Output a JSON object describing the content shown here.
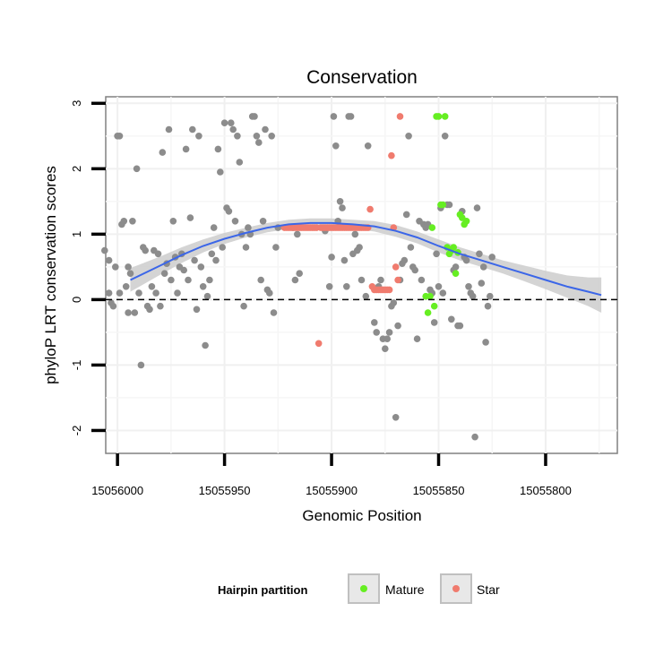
{
  "chart_data": {
    "type": "scatter",
    "title": "Conservation",
    "xlabel": "Genomic Position",
    "ylabel": "phyloP LRT conservation scores",
    "x_reversed": true,
    "xlim": [
      15056005.5,
      15055766.5
    ],
    "ylim": [
      -2.35,
      3.1
    ],
    "x_ticks": [
      15056000,
      15055950,
      15055900,
      15055850,
      15055800
    ],
    "x_tick_labels": [
      "15056000",
      "15055950",
      "15055900",
      "15055850",
      "15055800"
    ],
    "y_ticks": [
      -2,
      -1,
      0,
      1,
      2,
      3
    ],
    "y_tick_labels": [
      "-2",
      "-1",
      "0",
      "1",
      "2",
      "3"
    ],
    "grid": true,
    "reference_line": {
      "y": 0,
      "style": "dashed"
    },
    "legend": {
      "title": "Hairpin partition",
      "placement": "bottom",
      "entries": [
        {
          "label": "Mature",
          "color": "#66ee22"
        },
        {
          "label": "Star",
          "color": "#f07b6e"
        }
      ]
    },
    "colors": {
      "other": "#8c8c8c",
      "mature": "#66ee22",
      "star": "#f07b6e",
      "smooth": "#3b66e8",
      "band": "#cccccc"
    },
    "series": [
      {
        "name": "",
        "color": "#8c8c8c",
        "points": [
          [
            15056006,
            0.75
          ],
          [
            15056004,
            0.6
          ],
          [
            15056004,
            0.1
          ],
          [
            15056003,
            -0.05
          ],
          [
            15056002,
            -0.1
          ],
          [
            15056001,
            0.5
          ],
          [
            15056000,
            2.5
          ],
          [
            15055999,
            2.5
          ],
          [
            15055999,
            0.1
          ],
          [
            15055998,
            1.15
          ],
          [
            15055997,
            1.2
          ],
          [
            15055996,
            0.2
          ],
          [
            15055995,
            0.5
          ],
          [
            15055995,
            -0.2
          ],
          [
            15055994,
            0.4
          ],
          [
            15055993,
            1.2
          ],
          [
            15055992,
            -0.2
          ],
          [
            15055991,
            2.0
          ],
          [
            15055990,
            0.1
          ],
          [
            15055989,
            -1.0
          ],
          [
            15055988,
            0.8
          ],
          [
            15055987,
            0.75
          ],
          [
            15055986,
            -0.1
          ],
          [
            15055985,
            -0.15
          ],
          [
            15055984,
            0.2
          ],
          [
            15055983,
            0.75
          ],
          [
            15055982,
            0.1
          ],
          [
            15055981,
            0.7
          ],
          [
            15055980,
            -0.1
          ],
          [
            15055979,
            2.25
          ],
          [
            15055978,
            0.4
          ],
          [
            15055977,
            0.55
          ],
          [
            15055976,
            2.6
          ],
          [
            15055975,
            0.3
          ],
          [
            15055974,
            1.2
          ],
          [
            15055973,
            0.65
          ],
          [
            15055972,
            0.1
          ],
          [
            15055971,
            0.5
          ],
          [
            15055970,
            0.7
          ],
          [
            15055969,
            0.45
          ],
          [
            15055968,
            2.3
          ],
          [
            15055967,
            0.3
          ],
          [
            15055966,
            1.25
          ],
          [
            15055965,
            2.6
          ],
          [
            15055964,
            0.6
          ],
          [
            15055963,
            -0.15
          ],
          [
            15055962,
            2.5
          ],
          [
            15055961,
            0.5
          ],
          [
            15055960,
            0.2
          ],
          [
            15055959,
            -0.7
          ],
          [
            15055958,
            0.05
          ],
          [
            15055957,
            0.3
          ],
          [
            15055956,
            0.7
          ],
          [
            15055955,
            1.1
          ],
          [
            15055954,
            0.6
          ],
          [
            15055953,
            2.3
          ],
          [
            15055952,
            1.95
          ],
          [
            15055951,
            0.8
          ],
          [
            15055950,
            2.7
          ],
          [
            15055949,
            1.4
          ],
          [
            15055948,
            1.35
          ],
          [
            15055947,
            2.7
          ],
          [
            15055946,
            2.6
          ],
          [
            15055945,
            1.2
          ],
          [
            15055944,
            2.5
          ],
          [
            15055943,
            2.1
          ],
          [
            15055942,
            1.0
          ],
          [
            15055941,
            -0.1
          ],
          [
            15055940,
            0.8
          ],
          [
            15055939,
            1.1
          ],
          [
            15055938,
            1.0
          ],
          [
            15055937,
            2.8
          ],
          [
            15055936,
            2.8
          ],
          [
            15055935,
            2.5
          ],
          [
            15055934,
            2.4
          ],
          [
            15055933,
            0.3
          ],
          [
            15055932,
            1.2
          ],
          [
            15055931,
            2.6
          ],
          [
            15055930,
            0.15
          ],
          [
            15055929,
            0.1
          ],
          [
            15055928,
            2.5
          ],
          [
            15055927,
            -0.2
          ],
          [
            15055926,
            0.8
          ],
          [
            15055925,
            1.1
          ],
          [
            15055918,
            1.1
          ],
          [
            15055917,
            0.3
          ],
          [
            15055916,
            1.0
          ],
          [
            15055915,
            0.4
          ],
          [
            15055903,
            1.05
          ],
          [
            15055901,
            0.2
          ],
          [
            15055900,
            0.65
          ],
          [
            15055899,
            2.8
          ],
          [
            15055898,
            2.35
          ],
          [
            15055897,
            1.2
          ],
          [
            15055896,
            1.5
          ],
          [
            15055895,
            1.4
          ],
          [
            15055894,
            0.6
          ],
          [
            15055893,
            0.2
          ],
          [
            15055892,
            2.8
          ],
          [
            15055891,
            2.8
          ],
          [
            15055890,
            0.7
          ],
          [
            15055889,
            1.0
          ],
          [
            15055888,
            0.75
          ],
          [
            15055887,
            0.8
          ],
          [
            15055886,
            0.3
          ],
          [
            15055884,
            0.05
          ],
          [
            15055883,
            2.35
          ],
          [
            15055880,
            -0.35
          ],
          [
            15055879,
            -0.5
          ],
          [
            15055878,
            0.2
          ],
          [
            15055877,
            0.3
          ],
          [
            15055876,
            -0.6
          ],
          [
            15055875,
            -0.75
          ],
          [
            15055874,
            -0.6
          ],
          [
            15055873,
            -0.5
          ],
          [
            15055872,
            -0.1
          ],
          [
            15055871,
            -0.05
          ],
          [
            15055870,
            -1.8
          ],
          [
            15055869,
            -0.4
          ],
          [
            15055868,
            0.3
          ],
          [
            15055867,
            0.55
          ],
          [
            15055866,
            0.6
          ],
          [
            15055865,
            1.3
          ],
          [
            15055864,
            2.5
          ],
          [
            15055863,
            0.8
          ],
          [
            15055862,
            0.5
          ],
          [
            15055861,
            0.45
          ],
          [
            15055860,
            -0.6
          ],
          [
            15055859,
            1.2
          ],
          [
            15055858,
            0.3
          ],
          [
            15055857,
            1.15
          ],
          [
            15055856,
            1.1
          ],
          [
            15055855,
            1.15
          ],
          [
            15055854,
            0.15
          ],
          [
            15055853,
            0.1
          ],
          [
            15055852,
            -0.35
          ],
          [
            15055851,
            0.7
          ],
          [
            15055850,
            0.2
          ],
          [
            15055849,
            1.4
          ],
          [
            15055848,
            0.1
          ],
          [
            15055847,
            2.5
          ],
          [
            15055846,
            1.45
          ],
          [
            15055845,
            1.45
          ],
          [
            15055844,
            -0.3
          ],
          [
            15055843,
            0.45
          ],
          [
            15055842,
            0.5
          ],
          [
            15055841,
            -0.4
          ],
          [
            15055840,
            -0.4
          ],
          [
            15055839,
            1.35
          ],
          [
            15055838,
            0.65
          ],
          [
            15055837,
            0.6
          ],
          [
            15055836,
            0.2
          ],
          [
            15055835,
            0.1
          ],
          [
            15055834,
            0.05
          ],
          [
            15055833,
            -2.1
          ],
          [
            15055832,
            1.4
          ],
          [
            15055831,
            0.7
          ],
          [
            15055830,
            0.25
          ],
          [
            15055829,
            0.5
          ],
          [
            15055828,
            -0.65
          ],
          [
            15055827,
            -0.1
          ],
          [
            15055826,
            0.05
          ],
          [
            15055825,
            0.65
          ]
        ]
      },
      {
        "name": "Star",
        "color": "#f07b6e",
        "points": [
          [
            15055922,
            1.1
          ],
          [
            15055921,
            1.1
          ],
          [
            15055920,
            1.1
          ],
          [
            15055919,
            1.1
          ],
          [
            15055918,
            1.1
          ],
          [
            15055917,
            1.1
          ],
          [
            15055916,
            1.1
          ],
          [
            15055915,
            1.1
          ],
          [
            15055914,
            1.1
          ],
          [
            15055913,
            1.1
          ],
          [
            15055912,
            1.1
          ],
          [
            15055911,
            1.1
          ],
          [
            15055910,
            1.1
          ],
          [
            15055909,
            1.1
          ],
          [
            15055908,
            1.1
          ],
          [
            15055907,
            1.1
          ],
          [
            15055906,
            -0.67
          ],
          [
            15055905,
            1.1
          ],
          [
            15055904,
            1.1
          ],
          [
            15055903,
            1.1
          ],
          [
            15055902,
            1.1
          ],
          [
            15055901,
            1.1
          ],
          [
            15055900,
            1.1
          ],
          [
            15055899,
            1.1
          ],
          [
            15055898,
            1.1
          ],
          [
            15055897,
            1.1
          ],
          [
            15055896,
            1.1
          ],
          [
            15055895,
            1.1
          ],
          [
            15055894,
            1.1
          ],
          [
            15055893,
            1.1
          ],
          [
            15055892,
            1.1
          ],
          [
            15055891,
            1.1
          ],
          [
            15055890,
            1.1
          ],
          [
            15055889,
            1.1
          ],
          [
            15055888,
            1.1
          ],
          [
            15055887,
            1.1
          ],
          [
            15055886,
            1.1
          ],
          [
            15055885,
            1.1
          ],
          [
            15055884,
            1.1
          ],
          [
            15055883,
            1.1
          ],
          [
            15055882,
            1.38
          ],
          [
            15055881,
            0.2
          ],
          [
            15055880,
            0.15
          ],
          [
            15055879,
            0.15
          ],
          [
            15055878,
            0.15
          ],
          [
            15055877,
            0.15
          ],
          [
            15055876,
            0.15
          ],
          [
            15055875,
            0.15
          ],
          [
            15055874,
            0.15
          ],
          [
            15055873,
            0.15
          ],
          [
            15055872,
            2.2
          ],
          [
            15055871,
            1.1
          ],
          [
            15055870,
            0.5
          ],
          [
            15055869,
            0.3
          ],
          [
            15055868,
            2.8
          ]
        ]
      },
      {
        "name": "Mature",
        "color": "#66ee22",
        "points": [
          [
            15055856,
            0.05
          ],
          [
            15055855,
            -0.2
          ],
          [
            15055854,
            0.05
          ],
          [
            15055853,
            1.1
          ],
          [
            15055852,
            -0.1
          ],
          [
            15055851,
            2.8
          ],
          [
            15055850,
            2.8
          ],
          [
            15055849,
            1.45
          ],
          [
            15055848,
            1.45
          ],
          [
            15055847,
            2.8
          ],
          [
            15055846,
            0.8
          ],
          [
            15055845,
            0.7
          ],
          [
            15055844,
            0.75
          ],
          [
            15055843,
            0.8
          ],
          [
            15055842,
            0.4
          ],
          [
            15055841,
            0.72
          ],
          [
            15055840,
            1.3
          ],
          [
            15055839,
            1.25
          ],
          [
            15055838,
            1.15
          ],
          [
            15055837,
            1.2
          ]
        ]
      }
    ],
    "smooth": {
      "x": [
        15055994,
        15055980,
        15055970,
        15055960,
        15055950,
        15055940,
        15055930,
        15055920,
        15055910,
        15055900,
        15055890,
        15055880,
        15055870,
        15055860,
        15055850,
        15055840,
        15055830,
        15055820,
        15055810,
        15055800,
        15055790,
        15055780,
        15055774
      ],
      "y": [
        0.3,
        0.52,
        0.68,
        0.82,
        0.93,
        1.02,
        1.1,
        1.15,
        1.17,
        1.17,
        1.15,
        1.12,
        1.05,
        0.95,
        0.82,
        0.7,
        0.6,
        0.5,
        0.4,
        0.3,
        0.2,
        0.12,
        0.07
      ],
      "lower": [
        0.12,
        0.38,
        0.56,
        0.72,
        0.85,
        0.95,
        1.03,
        1.08,
        1.1,
        1.1,
        1.08,
        1.04,
        0.96,
        0.86,
        0.72,
        0.6,
        0.5,
        0.4,
        0.28,
        0.16,
        0.03,
        -0.1,
        -0.2
      ],
      "upper": [
        0.48,
        0.66,
        0.8,
        0.92,
        1.02,
        1.1,
        1.17,
        1.22,
        1.24,
        1.24,
        1.22,
        1.2,
        1.14,
        1.04,
        0.92,
        0.8,
        0.7,
        0.6,
        0.52,
        0.44,
        0.37,
        0.34,
        0.34
      ]
    }
  }
}
